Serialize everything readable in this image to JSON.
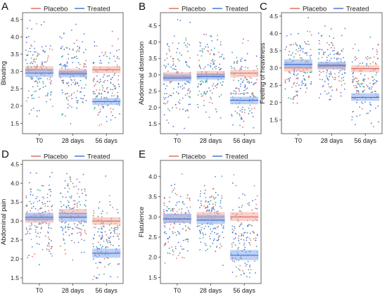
{
  "legend": {
    "placebo_label": "Placebo",
    "treated_label": "Treated"
  },
  "colors": {
    "placebo": "#d96a55",
    "treated": "#3b6fd4",
    "placebo_band": "#f3b3a6",
    "treated_band": "#8fb0ef",
    "jitter_points": [
      "#3b6fd4",
      "#d96a55",
      "#1ea08a"
    ]
  },
  "chart_data": [
    {
      "panel_letter": "A",
      "type": "scatter",
      "ylabel": "Bloating",
      "categories": [
        "T0",
        "28 days",
        "56 days"
      ],
      "yticks": [
        "1.5",
        "2.0",
        "2.5",
        "3.0",
        "3.5",
        "4.0",
        "4.5"
      ],
      "ylim": [
        1.2,
        4.7
      ],
      "legend_position": "top",
      "series": [
        {
          "name": "Placebo",
          "means": [
            3.05,
            2.98,
            3.05
          ],
          "ci": [
            [
              2.95,
              3.15
            ],
            [
              2.88,
              3.08
            ],
            [
              2.95,
              3.15
            ]
          ]
        },
        {
          "name": "Treated",
          "means": [
            2.95,
            2.93,
            2.13
          ],
          "ci": [
            [
              2.84,
              3.05
            ],
            [
              2.83,
              3.03
            ],
            [
              2.03,
              2.23
            ]
          ]
        }
      ],
      "spread": [
        [
          1.3,
          4.5
        ],
        [
          1.3,
          4.5
        ],
        [
          1.4,
          4.4
        ]
      ]
    },
    {
      "panel_letter": "B",
      "type": "scatter",
      "ylabel": "Abdominal distension",
      "categories": [
        "T0",
        "28 days",
        "56 days"
      ],
      "yticks": [
        "1.5",
        "2.0",
        "2.5",
        "3.0",
        "3.5",
        "4.0",
        "4.5"
      ],
      "ylim": [
        1.2,
        4.9
      ],
      "legend_position": "top",
      "series": [
        {
          "name": "Placebo",
          "means": [
            2.95,
            3.0,
            3.05
          ],
          "ci": [
            [
              2.85,
              3.08
            ],
            [
              2.9,
              3.12
            ],
            [
              2.93,
              3.15
            ]
          ]
        },
        {
          "name": "Treated",
          "means": [
            2.9,
            2.95,
            2.22
          ],
          "ci": [
            [
              2.8,
              3.02
            ],
            [
              2.85,
              3.05
            ],
            [
              2.1,
              2.33
            ]
          ]
        }
      ],
      "spread": [
        [
          1.3,
          4.8
        ],
        [
          1.5,
          4.6
        ],
        [
          1.3,
          4.2
        ]
      ]
    },
    {
      "panel_letter": "C",
      "type": "scatter",
      "ylabel": "Feeling of heaviness",
      "categories": [
        "T0",
        "28 days",
        "56 days"
      ],
      "yticks": [
        "1.5",
        "2.0",
        "2.5",
        "3.0",
        "3.5",
        "4.0",
        "4.5"
      ],
      "ylim": [
        1.1,
        4.6
      ],
      "legend_position": "top",
      "series": [
        {
          "name": "Placebo",
          "means": [
            3.0,
            3.05,
            2.98
          ],
          "ci": [
            [
              2.9,
              3.15
            ],
            [
              2.95,
              3.15
            ],
            [
              2.88,
              3.08
            ]
          ]
        },
        {
          "name": "Treated",
          "means": [
            3.1,
            3.08,
            2.15
          ],
          "ci": [
            [
              3.0,
              3.25
            ],
            [
              2.98,
              3.18
            ],
            [
              2.05,
              2.27
            ]
          ]
        }
      ],
      "spread": [
        [
          1.6,
          4.5
        ],
        [
          1.9,
          4.3
        ],
        [
          1.2,
          4.0
        ]
      ]
    },
    {
      "panel_letter": "D",
      "type": "scatter",
      "ylabel": "Abdominal pain",
      "categories": [
        "T0",
        "28 days",
        "56 days"
      ],
      "yticks": [
        "1.5",
        "2.0",
        "2.5",
        "3.0",
        "3.5",
        "4.0",
        "4.5"
      ],
      "ylim": [
        1.35,
        4.6
      ],
      "legend_position": "top",
      "series": [
        {
          "name": "Placebo",
          "means": [
            3.05,
            3.2,
            3.0
          ],
          "ci": [
            [
              2.95,
              3.18
            ],
            [
              3.08,
              3.32
            ],
            [
              2.9,
              3.1
            ]
          ]
        },
        {
          "name": "Treated",
          "means": [
            3.1,
            3.1,
            2.15
          ],
          "ci": [
            [
              3.0,
              3.22
            ],
            [
              2.98,
              3.22
            ],
            [
              2.03,
              2.27
            ]
          ]
        }
      ],
      "spread": [
        [
          1.8,
          4.4
        ],
        [
          1.5,
          4.3
        ],
        [
          1.45,
          4.2
        ]
      ]
    },
    {
      "panel_letter": "E",
      "type": "scatter",
      "ylabel": "Flatulence",
      "categories": [
        "T0",
        "28 days",
        "56 days"
      ],
      "yticks": [
        "1.5",
        "2.0",
        "2.5",
        "3.0",
        "3.5",
        "4.0"
      ],
      "ylim": [
        1.35,
        4.4
      ],
      "legend_position": "top",
      "series": [
        {
          "name": "Placebo",
          "means": [
            2.95,
            3.0,
            3.0
          ],
          "ci": [
            [
              2.85,
              3.08
            ],
            [
              2.9,
              3.12
            ],
            [
              2.9,
              3.12
            ]
          ]
        },
        {
          "name": "Treated",
          "means": [
            2.95,
            2.92,
            2.05
          ],
          "ci": [
            [
              2.85,
              3.08
            ],
            [
              2.82,
              3.05
            ],
            [
              1.93,
              2.18
            ]
          ]
        }
      ],
      "spread": [
        [
          1.7,
          4.2
        ],
        [
          1.7,
          4.1
        ],
        [
          1.5,
          4.4
        ]
      ]
    }
  ]
}
